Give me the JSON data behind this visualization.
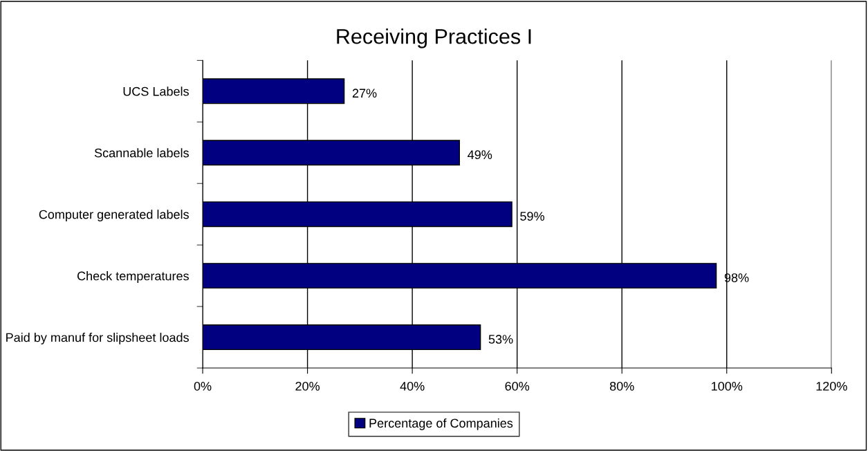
{
  "chart_data": {
    "type": "bar",
    "orientation": "horizontal",
    "title": "Receiving Practices I",
    "categories": [
      "UCS Labels",
      "Scannable labels",
      "Computer generated labels",
      "Check temperatures",
      "Paid by manuf for slipsheet loads"
    ],
    "series": [
      {
        "name": "Percentage of Companies",
        "color": "#000080",
        "values": [
          27,
          49,
          59,
          98,
          53
        ],
        "value_labels": [
          "27%",
          "49%",
          "59%",
          "98%",
          "53%"
        ]
      }
    ],
    "xlim": [
      0,
      120
    ],
    "xticks": [
      {
        "value": 0,
        "label": "0%"
      },
      {
        "value": 20,
        "label": "20%"
      },
      {
        "value": 40,
        "label": "40%"
      },
      {
        "value": 60,
        "label": "60%"
      },
      {
        "value": 80,
        "label": "80%"
      },
      {
        "value": 100,
        "label": "100%"
      },
      {
        "value": 120,
        "label": "120%"
      }
    ],
    "grid": "x",
    "legend": "bottom"
  }
}
